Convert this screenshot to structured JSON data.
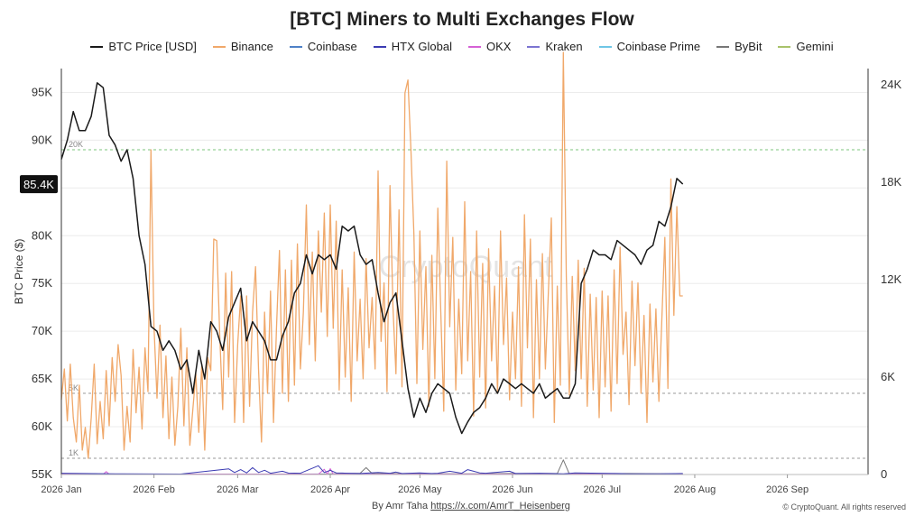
{
  "chart_data": {
    "type": "line",
    "title": "[BTC] Miners to Multi Exchanges Flow",
    "ylabel": "BTC Price ($)",
    "y_left_ticks": [
      "55K",
      "60K",
      "65K",
      "70K",
      "75K",
      "80K",
      "85K",
      "90K",
      "95K"
    ],
    "y_left_tick_values": [
      55000,
      60000,
      65000,
      70000,
      75000,
      80000,
      85000,
      90000,
      95000
    ],
    "ylim_left": [
      55000,
      97500
    ],
    "y_right_ticks": [
      "0",
      "6K",
      "12K",
      "18K",
      "24K"
    ],
    "y_right_tick_values": [
      0,
      6000,
      12000,
      18000,
      24000
    ],
    "ylim_right": [
      0,
      25000
    ],
    "x_ticks": [
      "2026 Jan",
      "2026 Feb",
      "2026 Mar",
      "2026 Apr",
      "2026 May",
      "2026 Jun",
      "2026 Jul",
      "2026 Aug",
      "2026 Sep"
    ],
    "x_tick_days": [
      0,
      31,
      59,
      90,
      120,
      151,
      181,
      212,
      243
    ],
    "x_range_days": [
      0,
      270
    ],
    "current_price_label": "85.4K",
    "current_price": 85400,
    "reference_lines": [
      {
        "label": "20K",
        "value": 20000
      },
      {
        "label": "5K",
        "value": 5000
      },
      {
        "label": "1K",
        "value": 1000
      }
    ],
    "legend": [
      {
        "name": "BTC Price [USD]",
        "color": "#1a1a1a"
      },
      {
        "name": "Binance",
        "color": "#f0a86a"
      },
      {
        "name": "Coinbase",
        "color": "#4f81c7"
      },
      {
        "name": "HTX Global",
        "color": "#3b3bb3"
      },
      {
        "name": "OKX",
        "color": "#d561d5"
      },
      {
        "name": "Kraken",
        "color": "#7b74d1"
      },
      {
        "name": "Coinbase Prime",
        "color": "#6ec6e6"
      },
      {
        "name": "ByBit",
        "color": "#777777"
      },
      {
        "name": "Gemini",
        "color": "#a8c26a"
      }
    ],
    "btc_price": [
      [
        0,
        88000
      ],
      [
        2,
        90000
      ],
      [
        4,
        93000
      ],
      [
        6,
        91000
      ],
      [
        8,
        91000
      ],
      [
        10,
        92500
      ],
      [
        12,
        96000
      ],
      [
        14,
        95500
      ],
      [
        16,
        90500
      ],
      [
        18,
        89500
      ],
      [
        20,
        87800
      ],
      [
        22,
        89000
      ],
      [
        24,
        86000
      ],
      [
        26,
        80000
      ],
      [
        28,
        77000
      ],
      [
        30,
        70500
      ],
      [
        32,
        70000
      ],
      [
        34,
        68000
      ],
      [
        36,
        69000
      ],
      [
        38,
        68000
      ],
      [
        40,
        66000
      ],
      [
        42,
        67000
      ],
      [
        44,
        63500
      ],
      [
        46,
        68000
      ],
      [
        48,
        65000
      ],
      [
        50,
        71000
      ],
      [
        52,
        70000
      ],
      [
        54,
        68000
      ],
      [
        56,
        71500
      ],
      [
        58,
        73000
      ],
      [
        60,
        74500
      ],
      [
        62,
        69000
      ],
      [
        64,
        71000
      ],
      [
        66,
        70000
      ],
      [
        68,
        69000
      ],
      [
        70,
        67000
      ],
      [
        72,
        67000
      ],
      [
        74,
        69500
      ],
      [
        76,
        71000
      ],
      [
        78,
        74000
      ],
      [
        80,
        75000
      ],
      [
        82,
        78000
      ],
      [
        84,
        76000
      ],
      [
        86,
        78000
      ],
      [
        88,
        77500
      ],
      [
        90,
        78000
      ],
      [
        92,
        76500
      ],
      [
        94,
        81000
      ],
      [
        96,
        80500
      ],
      [
        98,
        81000
      ],
      [
        100,
        78000
      ],
      [
        102,
        77000
      ],
      [
        104,
        77500
      ],
      [
        106,
        74000
      ],
      [
        108,
        71000
      ],
      [
        110,
        73000
      ],
      [
        112,
        74000
      ],
      [
        114,
        69000
      ],
      [
        116,
        64000
      ],
      [
        118,
        61000
      ],
      [
        120,
        63000
      ],
      [
        122,
        61500
      ],
      [
        124,
        63500
      ],
      [
        126,
        64500
      ],
      [
        128,
        64000
      ],
      [
        130,
        63500
      ],
      [
        132,
        61000
      ],
      [
        134,
        59300
      ],
      [
        136,
        60500
      ],
      [
        138,
        61500
      ],
      [
        140,
        62000
      ],
      [
        142,
        63000
      ],
      [
        144,
        64500
      ],
      [
        146,
        63500
      ],
      [
        148,
        65000
      ],
      [
        150,
        64500
      ],
      [
        152,
        64000
      ],
      [
        154,
        64500
      ],
      [
        156,
        64000
      ],
      [
        158,
        63500
      ],
      [
        160,
        64500
      ],
      [
        162,
        63000
      ],
      [
        164,
        63500
      ],
      [
        166,
        64000
      ],
      [
        168,
        63000
      ],
      [
        170,
        63000
      ],
      [
        172,
        64500
      ],
      [
        174,
        75000
      ],
      [
        176,
        76500
      ],
      [
        178,
        78500
      ],
      [
        180,
        78000
      ],
      [
        182,
        78000
      ],
      [
        184,
        77500
      ],
      [
        186,
        79500
      ],
      [
        188,
        79000
      ],
      [
        190,
        78500
      ],
      [
        192,
        78000
      ],
      [
        194,
        77000
      ],
      [
        196,
        78500
      ],
      [
        198,
        79000
      ],
      [
        200,
        81500
      ],
      [
        202,
        81000
      ],
      [
        204,
        83000
      ],
      [
        206,
        86000
      ],
      [
        208,
        85400
      ]
    ],
    "binance_flow": [
      [
        0,
        4600
      ],
      [
        1,
        6500
      ],
      [
        2,
        3300
      ],
      [
        3,
        6800
      ],
      [
        4,
        3500
      ],
      [
        5,
        2000
      ],
      [
        6,
        5500
      ],
      [
        7,
        1500
      ],
      [
        8,
        2900
      ],
      [
        9,
        1000
      ],
      [
        10,
        3500
      ],
      [
        11,
        6800
      ],
      [
        12,
        1900
      ],
      [
        13,
        4500
      ],
      [
        14,
        2200
      ],
      [
        15,
        6400
      ],
      [
        16,
        3000
      ],
      [
        17,
        7200
      ],
      [
        18,
        4500
      ],
      [
        19,
        8000
      ],
      [
        20,
        6100
      ],
      [
        21,
        1500
      ],
      [
        22,
        4200
      ],
      [
        23,
        2000
      ],
      [
        24,
        7700
      ],
      [
        25,
        3800
      ],
      [
        26,
        6600
      ],
      [
        27,
        2800
      ],
      [
        28,
        7800
      ],
      [
        29,
        5100
      ],
      [
        30,
        20000
      ],
      [
        31,
        9200
      ],
      [
        32,
        4700
      ],
      [
        33,
        9200
      ],
      [
        34,
        3500
      ],
      [
        35,
        7300
      ],
      [
        36,
        2200
      ],
      [
        37,
        6000
      ],
      [
        38,
        1800
      ],
      [
        39,
        4200
      ],
      [
        40,
        9000
      ],
      [
        41,
        3000
      ],
      [
        42,
        7800
      ],
      [
        43,
        1800
      ],
      [
        44,
        4000
      ],
      [
        45,
        6200
      ],
      [
        46,
        2600
      ],
      [
        47,
        6800
      ],
      [
        48,
        1500
      ],
      [
        49,
        7200
      ],
      [
        50,
        6400
      ],
      [
        51,
        14500
      ],
      [
        52,
        14400
      ],
      [
        53,
        8600
      ],
      [
        54,
        4000
      ],
      [
        55,
        12400
      ],
      [
        56,
        6000
      ],
      [
        57,
        12500
      ],
      [
        58,
        3200
      ],
      [
        59,
        8000
      ],
      [
        60,
        11000
      ],
      [
        61,
        3200
      ],
      [
        62,
        11000
      ],
      [
        63,
        4200
      ],
      [
        64,
        10000
      ],
      [
        65,
        12800
      ],
      [
        66,
        6500
      ],
      [
        67,
        2000
      ],
      [
        68,
        10000
      ],
      [
        69,
        5000
      ],
      [
        70,
        11300
      ],
      [
        71,
        3200
      ],
      [
        72,
        9000
      ],
      [
        73,
        13800
      ],
      [
        74,
        5000
      ],
      [
        75,
        12600
      ],
      [
        76,
        4500
      ],
      [
        77,
        13200
      ],
      [
        78,
        5500
      ],
      [
        79,
        14200
      ],
      [
        80,
        6500
      ],
      [
        81,
        10000
      ],
      [
        82,
        16600
      ],
      [
        83,
        8000
      ],
      [
        84,
        13700
      ],
      [
        85,
        7000
      ],
      [
        86,
        15000
      ],
      [
        87,
        10000
      ],
      [
        88,
        16100
      ],
      [
        89,
        8500
      ],
      [
        90,
        16600
      ],
      [
        91,
        9000
      ],
      [
        92,
        15600
      ],
      [
        93,
        5200
      ],
      [
        94,
        12600
      ],
      [
        95,
        6000
      ],
      [
        96,
        11500
      ],
      [
        97,
        4500
      ],
      [
        98,
        13700
      ],
      [
        99,
        7000
      ],
      [
        100,
        10800
      ],
      [
        101,
        5900
      ],
      [
        102,
        13300
      ],
      [
        103,
        7800
      ],
      [
        104,
        10900
      ],
      [
        105,
        6500
      ],
      [
        106,
        18700
      ],
      [
        107,
        8200
      ],
      [
        108,
        11800
      ],
      [
        109,
        5100
      ],
      [
        110,
        17800
      ],
      [
        111,
        10300
      ],
      [
        112,
        6200
      ],
      [
        113,
        16300
      ],
      [
        114,
        5400
      ],
      [
        115,
        23500
      ],
      [
        116,
        24300
      ],
      [
        117,
        20000
      ],
      [
        118,
        14800
      ],
      [
        119,
        5600
      ],
      [
        120,
        15000
      ],
      [
        121,
        7700
      ],
      [
        122,
        12800
      ],
      [
        123,
        4200
      ],
      [
        124,
        13500
      ],
      [
        125,
        5900
      ],
      [
        126,
        16400
      ],
      [
        127,
        10000
      ],
      [
        128,
        3900
      ],
      [
        129,
        19300
      ],
      [
        130,
        9100
      ],
      [
        131,
        14600
      ],
      [
        132,
        5200
      ],
      [
        133,
        10800
      ],
      [
        134,
        6200
      ],
      [
        135,
        16800
      ],
      [
        136,
        7000
      ],
      [
        137,
        12500
      ],
      [
        138,
        3600
      ],
      [
        139,
        15000
      ],
      [
        140,
        6000
      ],
      [
        141,
        13000
      ],
      [
        142,
        4100
      ],
      [
        143,
        13900
      ],
      [
        144,
        7000
      ],
      [
        145,
        11600
      ],
      [
        146,
        5000
      ],
      [
        147,
        15000
      ],
      [
        148,
        8000
      ],
      [
        149,
        12100
      ],
      [
        150,
        4600
      ],
      [
        151,
        10000
      ],
      [
        152,
        5900
      ],
      [
        153,
        12800
      ],
      [
        154,
        4200
      ],
      [
        155,
        16000
      ],
      [
        156,
        7800
      ],
      [
        157,
        14500
      ],
      [
        158,
        3500
      ],
      [
        159,
        12000
      ],
      [
        160,
        5900
      ],
      [
        161,
        13600
      ],
      [
        162,
        6500
      ],
      [
        163,
        11200
      ],
      [
        164,
        15800
      ],
      [
        165,
        3200
      ],
      [
        166,
        11600
      ],
      [
        167,
        5500
      ],
      [
        168,
        26000
      ],
      [
        169,
        12200
      ],
      [
        170,
        4900
      ],
      [
        171,
        12200
      ],
      [
        172,
        6400
      ],
      [
        173,
        13200
      ],
      [
        174,
        5900
      ],
      [
        175,
        12700
      ],
      [
        176,
        4200
      ],
      [
        177,
        11100
      ],
      [
        178,
        5200
      ],
      [
        179,
        10900
      ],
      [
        180,
        3500
      ],
      [
        181,
        11300
      ],
      [
        182,
        5400
      ],
      [
        183,
        11000
      ],
      [
        184,
        3900
      ],
      [
        185,
        12600
      ],
      [
        186,
        5600
      ],
      [
        187,
        14000
      ],
      [
        188,
        7400
      ],
      [
        189,
        10000
      ],
      [
        190,
        4300
      ],
      [
        191,
        11900
      ],
      [
        192,
        6700
      ],
      [
        193,
        11800
      ],
      [
        194,
        5000
      ],
      [
        195,
        9800
      ],
      [
        196,
        3200
      ],
      [
        197,
        10500
      ],
      [
        198,
        5700
      ],
      [
        199,
        10200
      ],
      [
        200,
        4500
      ],
      [
        201,
        9600
      ],
      [
        202,
        14600
      ],
      [
        203,
        5300
      ],
      [
        204,
        18200
      ],
      [
        205,
        9800
      ],
      [
        206,
        16500
      ],
      [
        207,
        11000
      ],
      [
        208,
        11000
      ]
    ],
    "htx_flow": [
      [
        0,
        80
      ],
      [
        20,
        40
      ],
      [
        40,
        30
      ],
      [
        56,
        350
      ],
      [
        58,
        120
      ],
      [
        60,
        300
      ],
      [
        62,
        100
      ],
      [
        64,
        420
      ],
      [
        66,
        120
      ],
      [
        68,
        260
      ],
      [
        70,
        80
      ],
      [
        74,
        200
      ],
      [
        76,
        90
      ],
      [
        80,
        80
      ],
      [
        86,
        540
      ],
      [
        88,
        120
      ],
      [
        90,
        260
      ],
      [
        92,
        100
      ],
      [
        94,
        90
      ],
      [
        100,
        60
      ],
      [
        106,
        120
      ],
      [
        110,
        80
      ],
      [
        112,
        150
      ],
      [
        114,
        60
      ],
      [
        120,
        100
      ],
      [
        124,
        60
      ],
      [
        126,
        80
      ],
      [
        130,
        200
      ],
      [
        134,
        80
      ],
      [
        136,
        300
      ],
      [
        138,
        200
      ],
      [
        140,
        100
      ],
      [
        142,
        80
      ],
      [
        150,
        200
      ],
      [
        152,
        60
      ],
      [
        160,
        80
      ],
      [
        164,
        60
      ],
      [
        168,
        40
      ],
      [
        172,
        100
      ],
      [
        180,
        80
      ],
      [
        186,
        60
      ],
      [
        190,
        40
      ],
      [
        200,
        40
      ],
      [
        208,
        60
      ]
    ],
    "okx_flow": [
      [
        0,
        20
      ],
      [
        14,
        20
      ],
      [
        15,
        180
      ],
      [
        16,
        20
      ],
      [
        86,
        20
      ],
      [
        88,
        320
      ],
      [
        89,
        20
      ],
      [
        90,
        360
      ],
      [
        91,
        20
      ],
      [
        150,
        20
      ],
      [
        208,
        20
      ]
    ],
    "bybit_flow": [
      [
        0,
        30
      ],
      [
        40,
        30
      ],
      [
        88,
        30
      ],
      [
        100,
        80
      ],
      [
        102,
        420
      ],
      [
        104,
        60
      ],
      [
        140,
        40
      ],
      [
        150,
        60
      ],
      [
        166,
        60
      ],
      [
        168,
        900
      ],
      [
        170,
        40
      ],
      [
        190,
        60
      ],
      [
        208,
        40
      ]
    ],
    "coinbase_flow": [
      [
        0,
        20
      ],
      [
        30,
        30
      ],
      [
        60,
        20
      ],
      [
        100,
        40
      ],
      [
        140,
        30
      ],
      [
        180,
        20
      ],
      [
        208,
        30
      ]
    ],
    "gemini_flow": [
      [
        0,
        10
      ],
      [
        208,
        10
      ]
    ]
  },
  "footer": {
    "credit_prefix": "By Amr Taha ",
    "credit_link": "https://x.com/AmrT_Heisenberg",
    "copyright": "© CryptoQuant. All rights reserved"
  },
  "watermark": "CryptoQuant"
}
